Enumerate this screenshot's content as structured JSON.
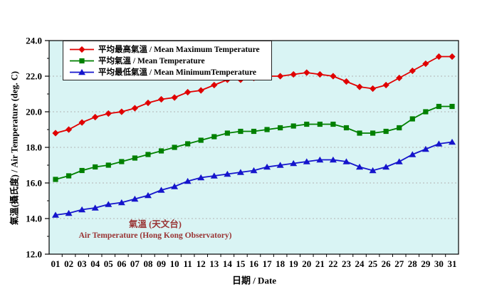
{
  "chart_data": {
    "type": "line",
    "title": "",
    "xlabel": "日期 / Date",
    "ylabel": "氣溫(攝氏度) / Air Temperature (deg. C)",
    "x": [
      "01",
      "02",
      "03",
      "04",
      "05",
      "06",
      "07",
      "08",
      "09",
      "10",
      "11",
      "12",
      "13",
      "14",
      "15",
      "16",
      "17",
      "18",
      "19",
      "20",
      "21",
      "22",
      "23",
      "24",
      "25",
      "26",
      "27",
      "28",
      "29",
      "30",
      "31"
    ],
    "ylim": [
      12.0,
      24.0
    ],
    "y_ticks": [
      "12.0",
      "14.0",
      "16.0",
      "18.0",
      "20.0",
      "22.0",
      "24.0"
    ],
    "grid": "horizontal-dashed",
    "legend_position": "top-left-inside",
    "plot_bg": "#d9f4f4",
    "grid_color": "#b3b3b3",
    "axis_color": "#000000",
    "series": [
      {
        "name": "平均最高氣溫 / Mean Maximum Temperature",
        "marker": "diamond",
        "color": "#e00000",
        "values": [
          18.8,
          19.0,
          19.4,
          19.7,
          19.9,
          20.0,
          20.2,
          20.5,
          20.7,
          20.8,
          21.1,
          21.2,
          21.5,
          21.8,
          21.8,
          21.9,
          22.0,
          22.0,
          22.1,
          22.2,
          22.1,
          22.0,
          21.7,
          21.4,
          21.3,
          21.5,
          21.9,
          22.3,
          22.7,
          23.1,
          23.1
        ]
      },
      {
        "name": "平均氣溫 / Mean Temperature",
        "marker": "square",
        "color": "#008000",
        "values": [
          16.2,
          16.4,
          16.7,
          16.9,
          17.0,
          17.2,
          17.4,
          17.6,
          17.8,
          18.0,
          18.2,
          18.4,
          18.6,
          18.8,
          18.9,
          18.9,
          19.0,
          19.1,
          19.2,
          19.3,
          19.3,
          19.3,
          19.1,
          18.8,
          18.8,
          18.9,
          19.1,
          19.6,
          20.0,
          20.3,
          20.3
        ]
      },
      {
        "name": "平均最低氣溫 / Mean MinimumTemperature",
        "marker": "triangle",
        "color": "#1515cc",
        "values": [
          14.2,
          14.3,
          14.5,
          14.6,
          14.8,
          14.9,
          15.1,
          15.3,
          15.6,
          15.8,
          16.1,
          16.3,
          16.4,
          16.5,
          16.6,
          16.7,
          16.9,
          17.0,
          17.1,
          17.2,
          17.3,
          17.3,
          17.2,
          16.9,
          16.7,
          16.9,
          17.2,
          17.6,
          17.9,
          18.2,
          18.3
        ]
      }
    ],
    "annotation": {
      "line1": "氣溫 (天文台)",
      "line2": "Air Temperature (Hong Kong Observatory)",
      "color": "#993333"
    }
  }
}
